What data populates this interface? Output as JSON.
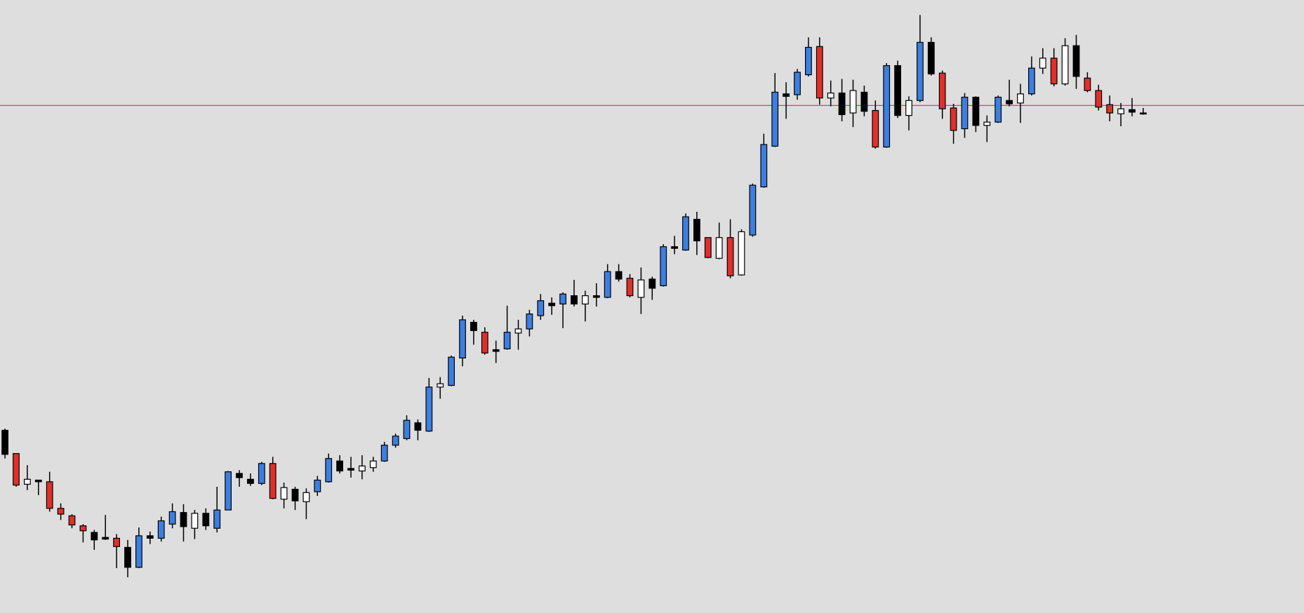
{
  "chart_data": {
    "type": "candlestick",
    "ylim": [
      0,
      738
    ],
    "open": [
      220,
      192,
      155,
      160,
      158,
      126,
      117,
      105,
      97,
      91,
      90,
      79,
      55,
      93,
      90,
      107,
      121,
      102,
      120,
      102,
      124,
      168,
      161,
      156,
      180,
      137,
      149,
      134,
      146,
      158,
      183,
      174,
      171,
      175,
      183,
      202,
      210,
      229,
      219,
      272,
      274,
      307,
      350,
      338,
      317,
      318,
      337,
      342,
      358,
      373,
      372,
      382,
      372,
      382,
      380,
      411,
      403,
      380,
      402,
      394,
      441,
      437,
      474,
      452,
      427,
      452,
      407,
      455,
      513,
      562,
      625,
      624,
      648,
      682,
      620,
      626,
      602,
      627,
      605,
      561,
      659,
      599,
      617,
      687,
      650,
      608,
      583,
      621,
      587,
      591,
      617,
      614,
      625,
      656,
      668,
      637,
      683,
      644,
      629,
      612,
      601,
      606,
      602
    ],
    "high": [
      222,
      192,
      178,
      160,
      170,
      132,
      119,
      107,
      100,
      118,
      95,
      88,
      103,
      98,
      116,
      132,
      131,
      124,
      126,
      152,
      171,
      172,
      168,
      182,
      188,
      157,
      152,
      150,
      165,
      192,
      190,
      188,
      190,
      188,
      206,
      216,
      238,
      233,
      283,
      284,
      310,
      358,
      353,
      344,
      328,
      370,
      353,
      365,
      384,
      380,
      386,
      401,
      388,
      397,
      420,
      420,
      408,
      416,
      405,
      444,
      454,
      481,
      483,
      452,
      470,
      474,
      462,
      517,
      577,
      650,
      639,
      655,
      693,
      693,
      641,
      643,
      642,
      635,
      617,
      662,
      665,
      622,
      720,
      693,
      653,
      613,
      626,
      622,
      599,
      623,
      642,
      637,
      670,
      680,
      680,
      692,
      696,
      651,
      636,
      623,
      614,
      620,
      608
    ],
    "low": [
      186,
      152,
      148,
      142,
      122,
      112,
      102,
      85,
      76,
      88,
      54,
      43,
      54,
      83,
      86,
      102,
      86,
      89,
      100,
      97,
      124,
      152,
      153,
      154,
      137,
      126,
      124,
      113,
      141,
      157,
      168,
      163,
      161,
      170,
      182,
      199,
      208,
      208,
      218,
      258,
      273,
      297,
      323,
      311,
      301,
      317,
      317,
      333,
      353,
      359,
      343,
      369,
      351,
      369,
      379,
      399,
      380,
      360,
      377,
      393,
      432,
      436,
      431,
      427,
      426,
      403,
      406,
      453,
      512,
      561,
      595,
      618,
      646,
      612,
      610,
      592,
      585,
      598,
      559,
      560,
      596,
      581,
      615,
      647,
      595,
      565,
      572,
      579,
      567,
      590,
      610,
      590,
      623,
      649,
      634,
      635,
      631,
      627,
      605,
      592,
      586,
      598,
      600
    ],
    "close": [
      191,
      154,
      161,
      158,
      126,
      119,
      106,
      99,
      88,
      89,
      80,
      55,
      93,
      90,
      111,
      122,
      104,
      120,
      105,
      124,
      170,
      163,
      156,
      180,
      138,
      151,
      135,
      145,
      160,
      186,
      171,
      172,
      177,
      183,
      202,
      213,
      232,
      220,
      272,
      276,
      308,
      353,
      340,
      313,
      315,
      338,
      342,
      360,
      376,
      370,
      384,
      372,
      382,
      380,
      411,
      402,
      382,
      401,
      391,
      441,
      439,
      477,
      448,
      428,
      452,
      406,
      459,
      515,
      564,
      627,
      622,
      651,
      681,
      620,
      626,
      600,
      629,
      604,
      561,
      659,
      599,
      617,
      687,
      649,
      607,
      581,
      621,
      587,
      591,
      621,
      613,
      625,
      656,
      668,
      637,
      683,
      646,
      629,
      609,
      602,
      607,
      603,
      601
    ],
    "colors": [
      "#000000",
      "#e0302a",
      "#ffffff",
      "#000000",
      "#e0302a",
      "#e0302a",
      "#e0302a",
      "#e0302a",
      "#000000",
      "#000000",
      "#e0302a",
      "#000000",
      "#3d7fe0",
      "#000000",
      "#3d7fe0",
      "#3d7fe0",
      "#000000",
      "#ffffff",
      "#000000",
      "#3d7fe0",
      "#3d7fe0",
      "#000000",
      "#000000",
      "#3d7fe0",
      "#e0302a",
      "#ffffff",
      "#000000",
      "#ffffff",
      "#3d7fe0",
      "#3d7fe0",
      "#000000",
      "#000000",
      "#ffffff",
      "#ffffff",
      "#3d7fe0",
      "#3d7fe0",
      "#3d7fe0",
      "#000000",
      "#3d7fe0",
      "#ffffff",
      "#3d7fe0",
      "#3d7fe0",
      "#000000",
      "#e0302a",
      "#000000",
      "#3d7fe0",
      "#ffffff",
      "#3d7fe0",
      "#3d7fe0",
      "#000000",
      "#3d7fe0",
      "#000000",
      "#ffffff",
      "#000000",
      "#3d7fe0",
      "#000000",
      "#e0302a",
      "#ffffff",
      "#000000",
      "#3d7fe0",
      "#000000",
      "#3d7fe0",
      "#000000",
      "#e0302a",
      "#ffffff",
      "#e0302a",
      "#ffffff",
      "#3d7fe0",
      "#3d7fe0",
      "#3d7fe0",
      "#000000",
      "#3d7fe0",
      "#3d7fe0",
      "#e0302a",
      "#ffffff",
      "#000000",
      "#ffffff",
      "#000000",
      "#e0302a",
      "#3d7fe0",
      "#000000",
      "#ffffff",
      "#3d7fe0",
      "#000000",
      "#e0302a",
      "#e0302a",
      "#3d7fe0",
      "#000000",
      "#ffffff",
      "#3d7fe0",
      "#000000",
      "#ffffff",
      "#3d7fe0",
      "#ffffff",
      "#e0302a",
      "#ffffff",
      "#000000",
      "#e0302a",
      "#e0302a",
      "#e0302a",
      "#ffffff",
      "#000000",
      "#000000"
    ],
    "hline": {
      "value": 611,
      "color": "#e8461e"
    }
  }
}
